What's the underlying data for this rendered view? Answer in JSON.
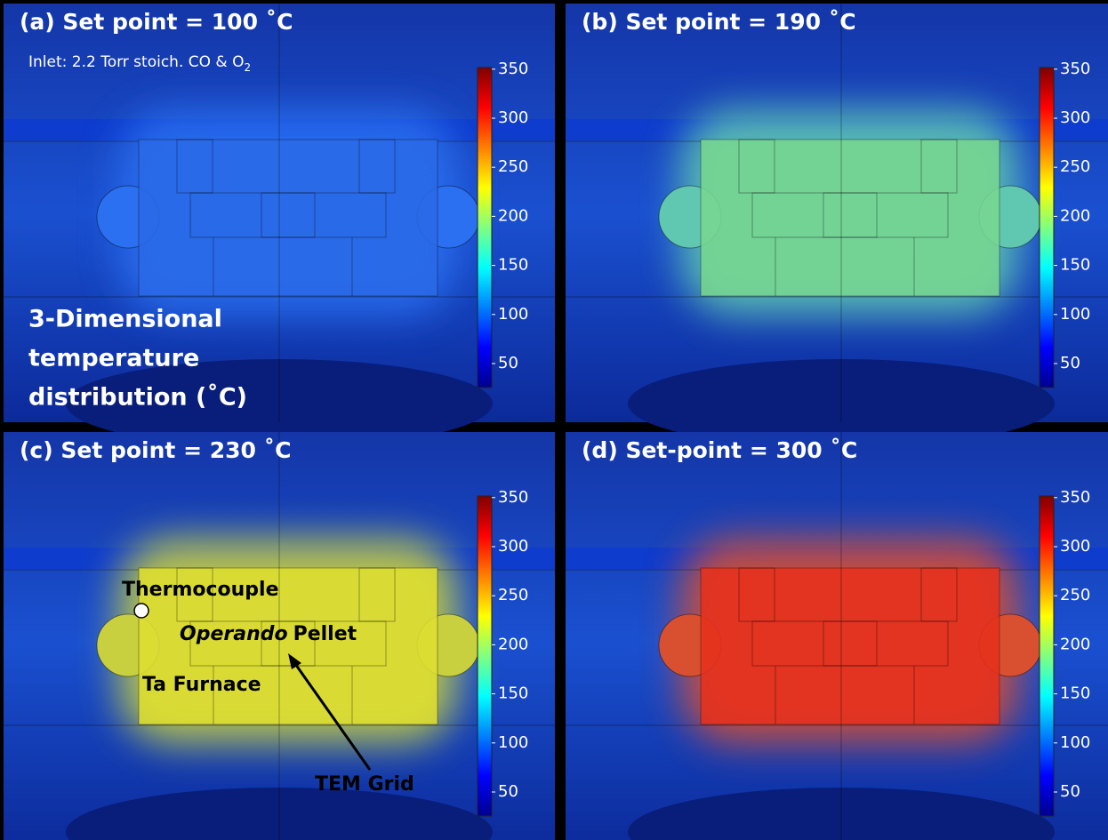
{
  "panels": [
    {
      "title": "(a) Set point = 100 ˚C",
      "inlet": {
        "text": "Inlet: 2.2 Torr stoich. CO & O",
        "subscript": "2"
      },
      "description": [
        "3-Dimensional",
        "temperature",
        "distribution (˚C)"
      ]
    },
    {
      "title": "(b) Set point = 190 ˚C"
    },
    {
      "title": "(c) Set point = 230 ˚C",
      "labels": {
        "thermocouple": "Thermocouple",
        "pellet_italic": "Operando",
        "pellet": "Pellet",
        "furnace": "Ta Furnace",
        "grid": "TEM Grid"
      }
    },
    {
      "title": "(d) Set-point = 300 ˚C"
    }
  ],
  "colorbar_ticks": [
    350,
    300,
    250,
    200,
    150,
    100,
    50
  ]
}
